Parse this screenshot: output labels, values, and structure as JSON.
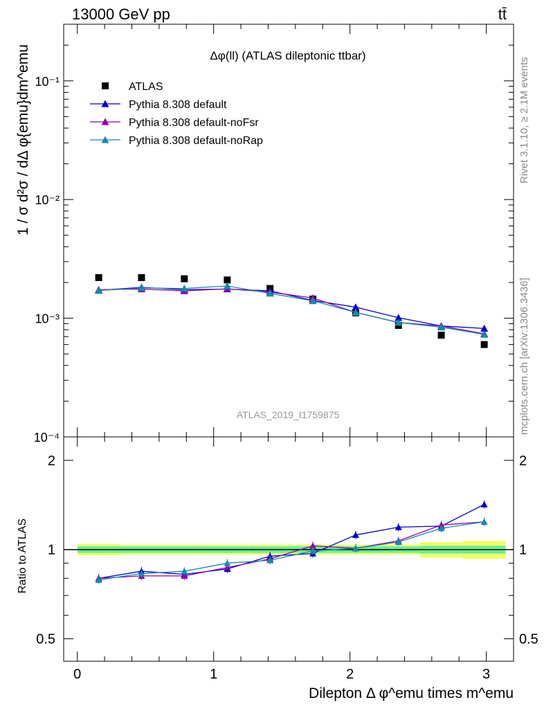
{
  "header": {
    "left": "13000 GeV pp",
    "right": "tt̄"
  },
  "side": {
    "rivet": "Rivet 3.1.10, ≥ 2.1M events",
    "mcplots": "mcplots.cern.ch [arXiv:1306.3436]"
  },
  "colors": {
    "data": "#000000",
    "default": "#0000cc",
    "noFsr": "#8a00b0",
    "noRap": "#1a8aa8",
    "band_inner": "#66ee99",
    "band_outer": "#f0ff66"
  },
  "chart_data": [
    {
      "type": "scatter",
      "title": "Δφ(ll) (ATLAS dileptonic ttbar)",
      "ylabel": "1 / σ  d²σ / dΔ φ{emu}dm^emu",
      "xlabel": "",
      "yscale": "log",
      "ylim": [
        0.0001,
        0.3
      ],
      "xlim": [
        -0.1,
        3.2
      ],
      "yticks_major": [
        0.0001,
        0.001,
        0.01,
        0.1
      ],
      "ytick_labels": [
        "10⁻⁴",
        "10⁻³",
        "10⁻²",
        "10⁻¹"
      ],
      "watermark": "ATLAS_2019_I1759875",
      "legend_position": "top-left",
      "x": [
        0.157,
        0.471,
        0.785,
        1.1,
        1.414,
        1.728,
        2.042,
        2.356,
        2.67,
        2.985
      ],
      "series": [
        {
          "name": "ATLAS",
          "marker": "square",
          "color": "#000000",
          "values": [
            0.0022,
            0.0022,
            0.00215,
            0.0021,
            0.00178,
            0.00145,
            0.00111,
            0.00087,
            0.00072,
            0.0006
          ]
        },
        {
          "name": "Pythia 8.308 default",
          "marker": "triangle",
          "color": "#0000cc",
          "values": [
            0.00172,
            0.00182,
            0.00174,
            0.00176,
            0.0017,
            0.00141,
            0.00124,
            0.00101,
            0.00086,
            0.00082
          ]
        },
        {
          "name": "Pythia 8.308 default-noFsr",
          "marker": "triangle",
          "color": "#8a00b0",
          "values": [
            0.00174,
            0.00176,
            0.0017,
            0.00177,
            0.00166,
            0.00148,
            0.00112,
            0.00092,
            0.00086,
            0.00074
          ]
        },
        {
          "name": "Pythia 8.308 default-noRap",
          "marker": "triangle",
          "color": "#1a8aa8",
          "values": [
            0.00171,
            0.0018,
            0.00178,
            0.00187,
            0.00162,
            0.0014,
            0.00112,
            0.00092,
            0.00084,
            0.00073
          ]
        }
      ]
    },
    {
      "type": "line",
      "title": "",
      "ylabel": "Ratio to ATLAS",
      "xlabel": "Dilepton Δ φ^emu times m^emu",
      "yscale": "log",
      "ylim": [
        0.42,
        2.4
      ],
      "xlim": [
        -0.1,
        3.2
      ],
      "yticks_labeled": [
        0.5,
        1,
        2
      ],
      "ytick_labels": [
        "0.5",
        "1",
        "2"
      ],
      "xticks": [
        0,
        1,
        2,
        3
      ],
      "xtick_labels": [
        "0",
        "1",
        "2",
        "3"
      ],
      "x": [
        0.157,
        0.471,
        0.785,
        1.1,
        1.414,
        1.728,
        2.042,
        2.356,
        2.67,
        2.985
      ],
      "band": {
        "inner_halfwidth": [
          0.025,
          0.025,
          0.025,
          0.025,
          0.025,
          0.025,
          0.025,
          0.025,
          0.03,
          0.03
        ],
        "outer_halfwidth": [
          0.045,
          0.04,
          0.04,
          0.04,
          0.04,
          0.04,
          0.04,
          0.04,
          0.06,
          0.07
        ]
      },
      "series": [
        {
          "name": "Pythia 8.308 default",
          "color": "#0000cc",
          "values": [
            0.8,
            0.845,
            0.825,
            0.86,
            0.95,
            0.97,
            1.12,
            1.19,
            1.2,
            1.42
          ]
        },
        {
          "name": "Pythia 8.308 default-noFsr",
          "color": "#8a00b0",
          "values": [
            0.8,
            0.815,
            0.815,
            0.87,
            0.93,
            1.03,
            1.01,
            1.07,
            1.21,
            1.24
          ]
        },
        {
          "name": "Pythia 8.308 default-noRap",
          "color": "#1a8aa8",
          "values": [
            0.79,
            0.83,
            0.845,
            0.9,
            0.92,
            0.99,
            1.01,
            1.06,
            1.18,
            1.24
          ]
        }
      ]
    }
  ]
}
